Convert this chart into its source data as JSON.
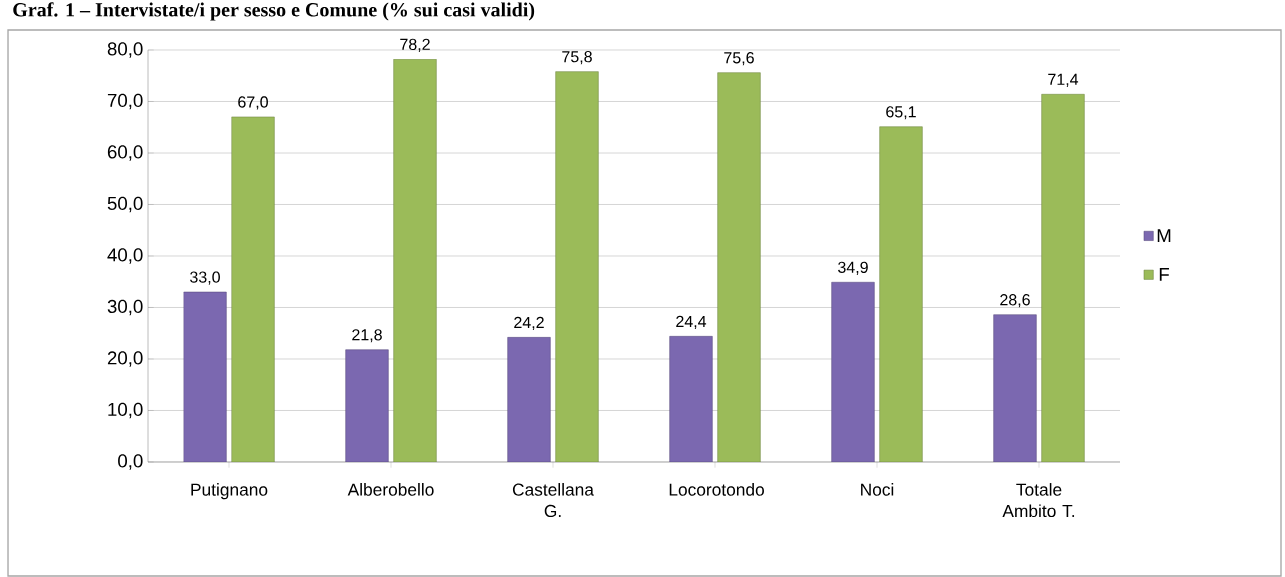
{
  "chart_data": {
    "type": "bar",
    "title": "Graf. 1 – Intervistate/i per sesso e Comune (% sui casi validi)",
    "categories": [
      "Putignano",
      "Alberobello",
      "Castellana G.",
      "Locorotondo",
      "Noci",
      "Totale Ambito T."
    ],
    "series": [
      {
        "name": "M",
        "color": "#7b68b0",
        "values": [
          33.0,
          21.8,
          24.2,
          24.4,
          34.9,
          28.6
        ],
        "value_labels": [
          "33,0",
          "21,8",
          "24,2",
          "24,4",
          "34,9",
          "28,6"
        ]
      },
      {
        "name": "F",
        "color": "#9bbb59",
        "values": [
          67.0,
          78.2,
          75.8,
          75.6,
          65.1,
          71.4
        ],
        "value_labels": [
          "67,0",
          "78,2",
          "75,8",
          "75,6",
          "65,1",
          "71,4"
        ]
      }
    ],
    "ylim": [
      0,
      80
    ],
    "yticks": [
      {
        "value": 0,
        "label": "0,0"
      },
      {
        "value": 10,
        "label": "10,0"
      },
      {
        "value": 20,
        "label": "20,0"
      },
      {
        "value": 30,
        "label": "30,0"
      },
      {
        "value": 40,
        "label": "40,0"
      },
      {
        "value": 50,
        "label": "50,0"
      },
      {
        "value": 60,
        "label": "60,0"
      },
      {
        "value": 70,
        "label": "70,0"
      },
      {
        "value": 80,
        "label": "80,0"
      }
    ],
    "grid": "y",
    "legend": "right"
  }
}
